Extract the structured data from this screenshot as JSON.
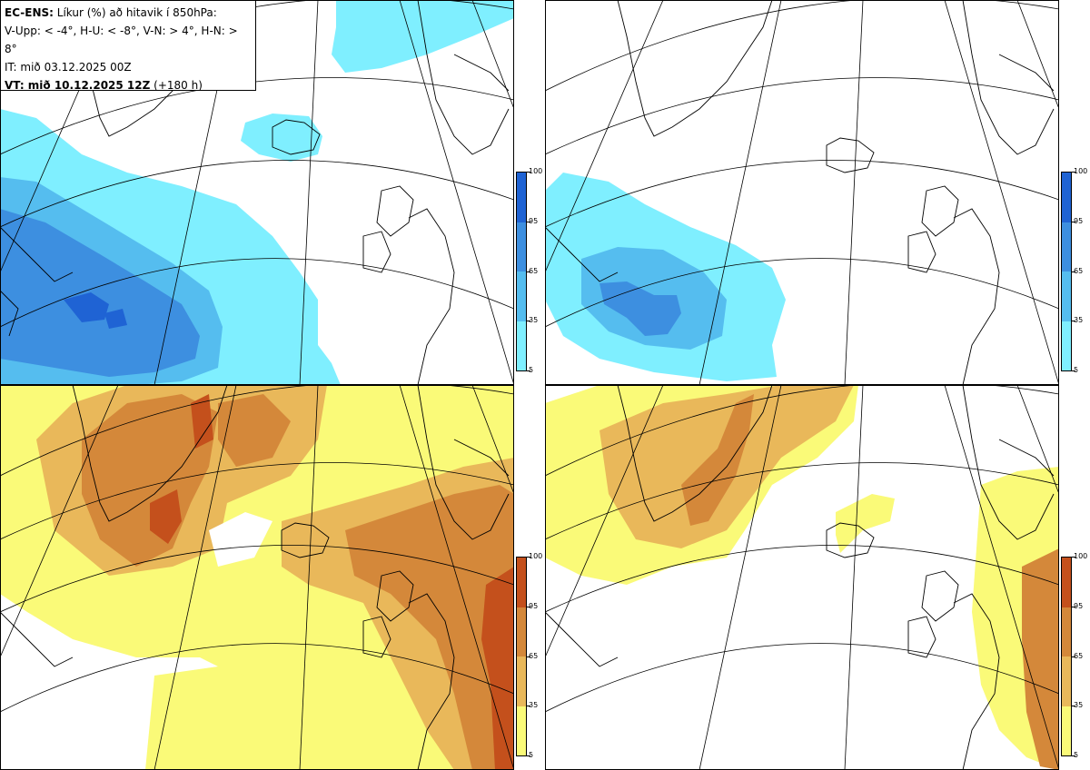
{
  "header": {
    "model": "EC-ENS:",
    "title": "Líkur (%) að hitavik í 850hPa:",
    "thresholds": "V-Upp: < -4°, H-U: < -8°, V-N: > 4°, H-N: > 8°",
    "init_time": "IT: mið 03.12.2025 00Z",
    "valid_label": "VT: mið 10.12.2025 12Z",
    "lead": "(+180 h)"
  },
  "legend_cold": {
    "ticks": [
      "100",
      "95",
      "65",
      "35",
      "5"
    ],
    "colors": [
      "#1f63d4",
      "#3d8fe0",
      "#55bdef",
      "#7fefff"
    ]
  },
  "legend_warm": {
    "ticks": [
      "100",
      "95",
      "65",
      "35",
      "5"
    ],
    "colors": [
      "#c4501c",
      "#d4883a",
      "#e9b85a",
      "#fafa78"
    ]
  },
  "panels": [
    {
      "id": "V-Upp",
      "threshold": "< -4°"
    },
    {
      "id": "H-U",
      "threshold": "< -8°"
    },
    {
      "id": "V-N",
      "threshold": "> 4°"
    },
    {
      "id": "H-N",
      "threshold": "> 8°"
    }
  ]
}
